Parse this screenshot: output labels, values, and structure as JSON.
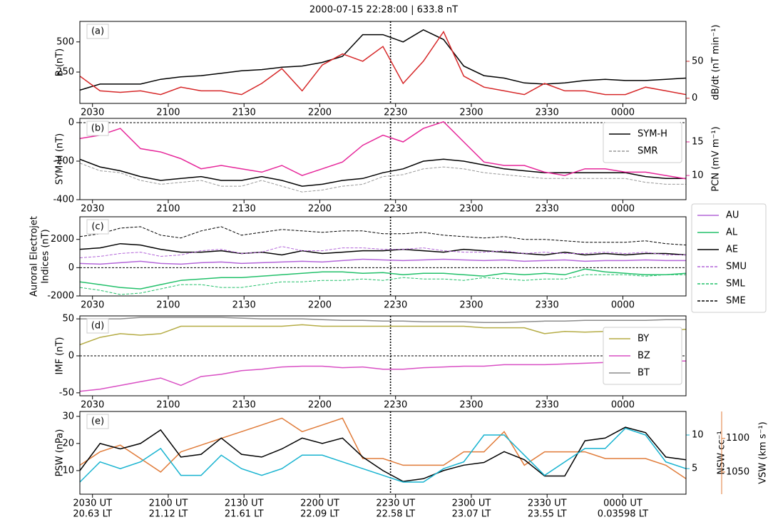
{
  "title": "2000-07-15 22:28:00 | 633.8 nT",
  "time_marker": 1348,
  "chart_data": [
    {
      "type": "line",
      "panel_label": "(a)",
      "ylabel": [
        "B (nT)"
      ],
      "y2label": "dB/dt (nT min⁻¹)",
      "xlim": [
        1225,
        1465
      ],
      "xticks": [
        {
          "value": 1230,
          "label": "2030"
        },
        {
          "value": 1260,
          "label": "2100"
        },
        {
          "value": 1290,
          "label": "2130"
        },
        {
          "value": 1320,
          "label": "2200"
        },
        {
          "value": 1350,
          "label": "2230"
        },
        {
          "value": 1380,
          "label": "2300"
        },
        {
          "value": 1410,
          "label": "2330"
        },
        {
          "value": 1440,
          "label": "0000"
        }
      ],
      "ylim": [
        -10,
        670
      ],
      "yticks": [
        250,
        500
      ],
      "y2lim": [
        -7,
        104
      ],
      "y2ticks": [
        0,
        50
      ],
      "x": [
        1225,
        1233,
        1241,
        1249,
        1257,
        1265,
        1273,
        1281,
        1289,
        1297,
        1305,
        1313,
        1321,
        1329,
        1337,
        1345,
        1353,
        1361,
        1369,
        1377,
        1385,
        1393,
        1401,
        1409,
        1417,
        1425,
        1433,
        1441,
        1449,
        1457,
        1465
      ],
      "series": [
        {
          "color": "#000000",
          "axis": "y",
          "values": [
            100,
            150,
            150,
            150,
            190,
            210,
            220,
            240,
            260,
            270,
            290,
            300,
            330,
            380,
            560,
            560,
            500,
            600,
            520,
            300,
            220,
            200,
            160,
            150,
            160,
            180,
            190,
            180,
            180,
            190,
            200
          ]
        },
        {
          "color": "#d62728",
          "axis": "y2",
          "values": [
            30,
            10,
            8,
            10,
            5,
            15,
            10,
            10,
            5,
            20,
            40,
            10,
            45,
            60,
            50,
            70,
            20,
            50,
            90,
            30,
            15,
            10,
            5,
            20,
            10,
            10,
            5,
            5,
            15,
            10,
            5
          ]
        }
      ]
    },
    {
      "type": "line",
      "panel_label": "(b)",
      "ylabel": [
        "SYM-H (nT)"
      ],
      "y2label": "PCN (mV m⁻¹)",
      "legend": "upper right",
      "zero_line": true,
      "xlim": [
        1225,
        1465
      ],
      "xticks": [
        {
          "value": 1230,
          "label": "2030"
        },
        {
          "value": 1260,
          "label": "2100"
        },
        {
          "value": 1290,
          "label": "2130"
        },
        {
          "value": 1320,
          "label": "2200"
        },
        {
          "value": 1350,
          "label": "2230"
        },
        {
          "value": 1380,
          "label": "2300"
        },
        {
          "value": 1410,
          "label": "2330"
        },
        {
          "value": 1440,
          "label": "0000"
        }
      ],
      "ylim": [
        -400,
        22
      ],
      "yticks": [
        0,
        -200,
        -400
      ],
      "y2lim": [
        6.4,
        18.5
      ],
      "y2ticks": [
        10,
        15
      ],
      "x": [
        1225,
        1233,
        1241,
        1249,
        1257,
        1265,
        1273,
        1281,
        1289,
        1297,
        1305,
        1313,
        1321,
        1329,
        1337,
        1345,
        1353,
        1361,
        1369,
        1377,
        1385,
        1393,
        1401,
        1409,
        1417,
        1425,
        1433,
        1441,
        1449,
        1457,
        1465
      ],
      "series": [
        {
          "name": "SYM-H",
          "color": "#000000",
          "axis": "y",
          "values": [
            -190,
            -230,
            -250,
            -280,
            -300,
            -290,
            -280,
            -300,
            -300,
            -280,
            -300,
            -330,
            -320,
            -300,
            -290,
            -260,
            -240,
            -200,
            -190,
            -200,
            -220,
            -240,
            -250,
            -260,
            -260,
            -260,
            -260,
            -260,
            -280,
            -290,
            -290
          ]
        },
        {
          "name": "SMR",
          "color": "#999999",
          "axis": "y",
          "style": "dashed",
          "values": [
            -210,
            -250,
            -260,
            -300,
            -320,
            -310,
            -300,
            -330,
            -330,
            -300,
            -330,
            -360,
            -350,
            -330,
            -320,
            -280,
            -270,
            -240,
            -230,
            -240,
            -260,
            -270,
            -280,
            -290,
            -290,
            -290,
            -290,
            -290,
            -310,
            -320,
            -320
          ]
        },
        {
          "color": "#e6279a",
          "axis": "y2",
          "values": [
            15.5,
            16,
            17,
            14,
            13.5,
            12.5,
            11,
            11.5,
            11,
            10.5,
            11.5,
            10,
            11,
            12,
            14.5,
            16,
            15,
            17,
            18,
            15,
            12,
            11.5,
            11.5,
            10.5,
            10,
            11,
            11,
            10.5,
            10.5,
            10,
            9.5
          ]
        }
      ]
    },
    {
      "type": "line",
      "panel_label": "(c)",
      "ylabel": [
        "Auroral Electrojet",
        "Indices (nT)"
      ],
      "legend": "outside right",
      "zero_line": true,
      "xlim": [
        1225,
        1465
      ],
      "xticks": [
        {
          "value": 1230,
          "label": "2030"
        },
        {
          "value": 1260,
          "label": "2100"
        },
        {
          "value": 1290,
          "label": "2130"
        },
        {
          "value": 1320,
          "label": "2200"
        },
        {
          "value": 1350,
          "label": "2230"
        },
        {
          "value": 1380,
          "label": "2300"
        },
        {
          "value": 1410,
          "label": "2330"
        },
        {
          "value": 1440,
          "label": "0000"
        }
      ],
      "ylim": [
        -2000,
        3600
      ],
      "yticks": [
        -2000,
        0,
        2000
      ],
      "x": [
        1225,
        1233,
        1241,
        1249,
        1257,
        1265,
        1273,
        1281,
        1289,
        1297,
        1305,
        1313,
        1321,
        1329,
        1337,
        1345,
        1353,
        1361,
        1369,
        1377,
        1385,
        1393,
        1401,
        1409,
        1417,
        1425,
        1433,
        1441,
        1449,
        1457,
        1465
      ],
      "series": [
        {
          "name": "AU",
          "color": "#b366d9",
          "axis": "y",
          "values": [
            300,
            250,
            350,
            450,
            300,
            250,
            350,
            400,
            300,
            350,
            400,
            450,
            400,
            500,
            600,
            550,
            500,
            550,
            600,
            550,
            500,
            550,
            450,
            500,
            550,
            450,
            500,
            500,
            550,
            500,
            500
          ]
        },
        {
          "name": "AL",
          "color": "#22c06a",
          "axis": "y",
          "values": [
            -1000,
            -1200,
            -1400,
            -1500,
            -1200,
            -900,
            -800,
            -700,
            -700,
            -600,
            -500,
            -400,
            -300,
            -300,
            -400,
            -350,
            -500,
            -400,
            -400,
            -500,
            -600,
            -400,
            -500,
            -400,
            -500,
            -100,
            -300,
            -400,
            -500,
            -500,
            -400
          ]
        },
        {
          "name": "AE",
          "color": "#000000",
          "axis": "y",
          "values": [
            1300,
            1400,
            1700,
            1600,
            1300,
            1100,
            1100,
            1200,
            1000,
            1100,
            900,
            1200,
            1000,
            1100,
            1200,
            1200,
            1300,
            1200,
            1100,
            1300,
            1200,
            1100,
            1000,
            900,
            1100,
            900,
            1000,
            900,
            1000,
            1000,
            900
          ]
        },
        {
          "name": "SMU",
          "color": "#b366d9",
          "axis": "y",
          "style": "dashed",
          "values": [
            700,
            800,
            1000,
            1100,
            800,
            900,
            1200,
            1300,
            1000,
            1100,
            1500,
            1200,
            1200,
            1400,
            1400,
            1300,
            1300,
            1400,
            1200,
            1100,
            1100,
            1200,
            1000,
            1100,
            1000,
            1000,
            1100,
            1000,
            1100,
            900,
            900
          ]
        },
        {
          "name": "SML",
          "color": "#22c06a",
          "axis": "y",
          "style": "dashed",
          "values": [
            -1400,
            -1600,
            -1900,
            -1800,
            -1500,
            -1200,
            -1200,
            -1400,
            -1400,
            -1200,
            -1000,
            -1000,
            -900,
            -900,
            -800,
            -900,
            -700,
            -800,
            -800,
            -900,
            -700,
            -800,
            -900,
            -800,
            -800,
            -500,
            -500,
            -500,
            -600,
            -500,
            -500
          ]
        },
        {
          "name": "SME",
          "color": "#000000",
          "axis": "y",
          "style": "dashed",
          "values": [
            2200,
            2400,
            2800,
            2900,
            2300,
            2100,
            2600,
            2900,
            2300,
            2500,
            2700,
            2600,
            2500,
            2600,
            2600,
            2400,
            2400,
            2500,
            2300,
            2200,
            2100,
            2200,
            2000,
            2000,
            1900,
            1800,
            1800,
            1800,
            1900,
            1700,
            1600
          ]
        }
      ]
    },
    {
      "type": "line",
      "panel_label": "(d)",
      "ylabel": [
        "IMF (nT)"
      ],
      "legend": "center right",
      "zero_line": true,
      "xlim": [
        1225,
        1465
      ],
      "xticks": [
        {
          "value": 1230,
          "label": "2030"
        },
        {
          "value": 1260,
          "label": "2100"
        },
        {
          "value": 1290,
          "label": "2130"
        },
        {
          "value": 1320,
          "label": "2200"
        },
        {
          "value": 1350,
          "label": "2230"
        },
        {
          "value": 1380,
          "label": "2300"
        },
        {
          "value": 1410,
          "label": "2330"
        },
        {
          "value": 1440,
          "label": "0000"
        }
      ],
      "ylim": [
        -54,
        54
      ],
      "yticks": [
        -50,
        0,
        50
      ],
      "x": [
        1225,
        1233,
        1241,
        1249,
        1257,
        1265,
        1273,
        1281,
        1289,
        1297,
        1305,
        1313,
        1321,
        1329,
        1337,
        1345,
        1353,
        1361,
        1369,
        1377,
        1385,
        1393,
        1401,
        1409,
        1417,
        1425,
        1433,
        1441,
        1449,
        1457,
        1465
      ],
      "series": [
        {
          "name": "BY",
          "color": "#b5ac45",
          "axis": "y",
          "values": [
            15,
            25,
            30,
            28,
            30,
            40,
            40,
            40,
            40,
            40,
            40,
            42,
            40,
            40,
            40,
            40,
            40,
            40,
            40,
            40,
            38,
            38,
            38,
            30,
            33,
            32,
            33,
            32,
            32,
            34,
            36
          ]
        },
        {
          "name": "BZ",
          "color": "#d94fc4",
          "axis": "y",
          "values": [
            -48,
            -45,
            -40,
            -35,
            -30,
            -40,
            -28,
            -25,
            -20,
            -18,
            -15,
            -14,
            -14,
            -16,
            -15,
            -18,
            -18,
            -16,
            -15,
            -14,
            -14,
            -12,
            -12,
            -12,
            -11,
            -10,
            -9,
            -8,
            -7,
            -7,
            -7
          ]
        },
        {
          "name": "BT",
          "color": "#8c8c8c",
          "axis": "y",
          "values": [
            50,
            50,
            50,
            52,
            52,
            52,
            52,
            52,
            51,
            50,
            50,
            50,
            49,
            48,
            48,
            47,
            47,
            46,
            46,
            46,
            45,
            45,
            46,
            47,
            47,
            48,
            48,
            48,
            48,
            49,
            49
          ]
        }
      ]
    },
    {
      "type": "line",
      "panel_label": "(e)",
      "ylabel": [
        "PSW (nPa)"
      ],
      "y2label": "NSW cc⁻¹",
      "y3label": "VSW (km s⁻¹)",
      "xlim": [
        1225,
        1465
      ],
      "xticks": [
        {
          "value": 1230,
          "label": "2030 UT"
        },
        {
          "value": 1260,
          "label": "2100 UT"
        },
        {
          "value": 1290,
          "label": "2130 UT"
        },
        {
          "value": 1320,
          "label": "2200 UT"
        },
        {
          "value": 1350,
          "label": "2230 UT"
        },
        {
          "value": 1380,
          "label": "2300 UT"
        },
        {
          "value": 1410,
          "label": "2330 UT"
        },
        {
          "value": 1440,
          "label": "0000 UT"
        }
      ],
      "xtick_sublabels": [
        "20.63 LT",
        "21.12 LT",
        "21.61 LT",
        "22.09 LT",
        "22.58 LT",
        "23.07 LT",
        "23.55 LT",
        "0.03598 LT"
      ],
      "ylim": [
        1.3,
        31.8
      ],
      "yticks": [
        10,
        20,
        30
      ],
      "y2lim": [
        1.2,
        13.5
      ],
      "y2ticks": [
        5,
        10
      ],
      "y3lim": [
        1017,
        1140
      ],
      "y3ticks": [
        1050,
        1100
      ],
      "x": [
        1225,
        1233,
        1241,
        1249,
        1257,
        1265,
        1273,
        1281,
        1289,
        1297,
        1305,
        1313,
        1321,
        1329,
        1337,
        1345,
        1353,
        1361,
        1369,
        1377,
        1385,
        1393,
        1401,
        1409,
        1417,
        1425,
        1433,
        1441,
        1449,
        1457,
        1465
      ],
      "series": [
        {
          "color": "#e07b39",
          "axis": "y3",
          "values": [
            1060,
            1080,
            1090,
            1070,
            1050,
            1080,
            1090,
            1100,
            1110,
            1120,
            1130,
            1110,
            1120,
            1130,
            1070,
            1070,
            1060,
            1060,
            1060,
            1080,
            1080,
            1110,
            1060,
            1080,
            1080,
            1080,
            1070,
            1070,
            1070,
            1060,
            1040
          ]
        },
        {
          "color": "#000000",
          "axis": "y",
          "values": [
            10,
            20,
            18,
            20,
            25,
            15,
            16,
            22,
            16,
            15,
            18,
            22,
            20,
            22,
            15,
            10,
            6,
            7,
            10,
            12,
            13,
            17,
            14,
            8,
            8,
            21,
            22,
            26,
            24,
            15,
            14
          ]
        },
        {
          "color": "#17b3d0",
          "axis": "y2",
          "values": [
            3,
            6,
            5,
            6,
            8,
            4,
            4,
            7,
            5,
            4,
            5,
            7,
            7,
            6,
            5,
            4,
            3,
            3,
            5,
            6,
            10,
            10,
            7,
            4,
            6,
            8,
            8,
            11,
            10,
            6,
            5
          ]
        }
      ]
    }
  ]
}
